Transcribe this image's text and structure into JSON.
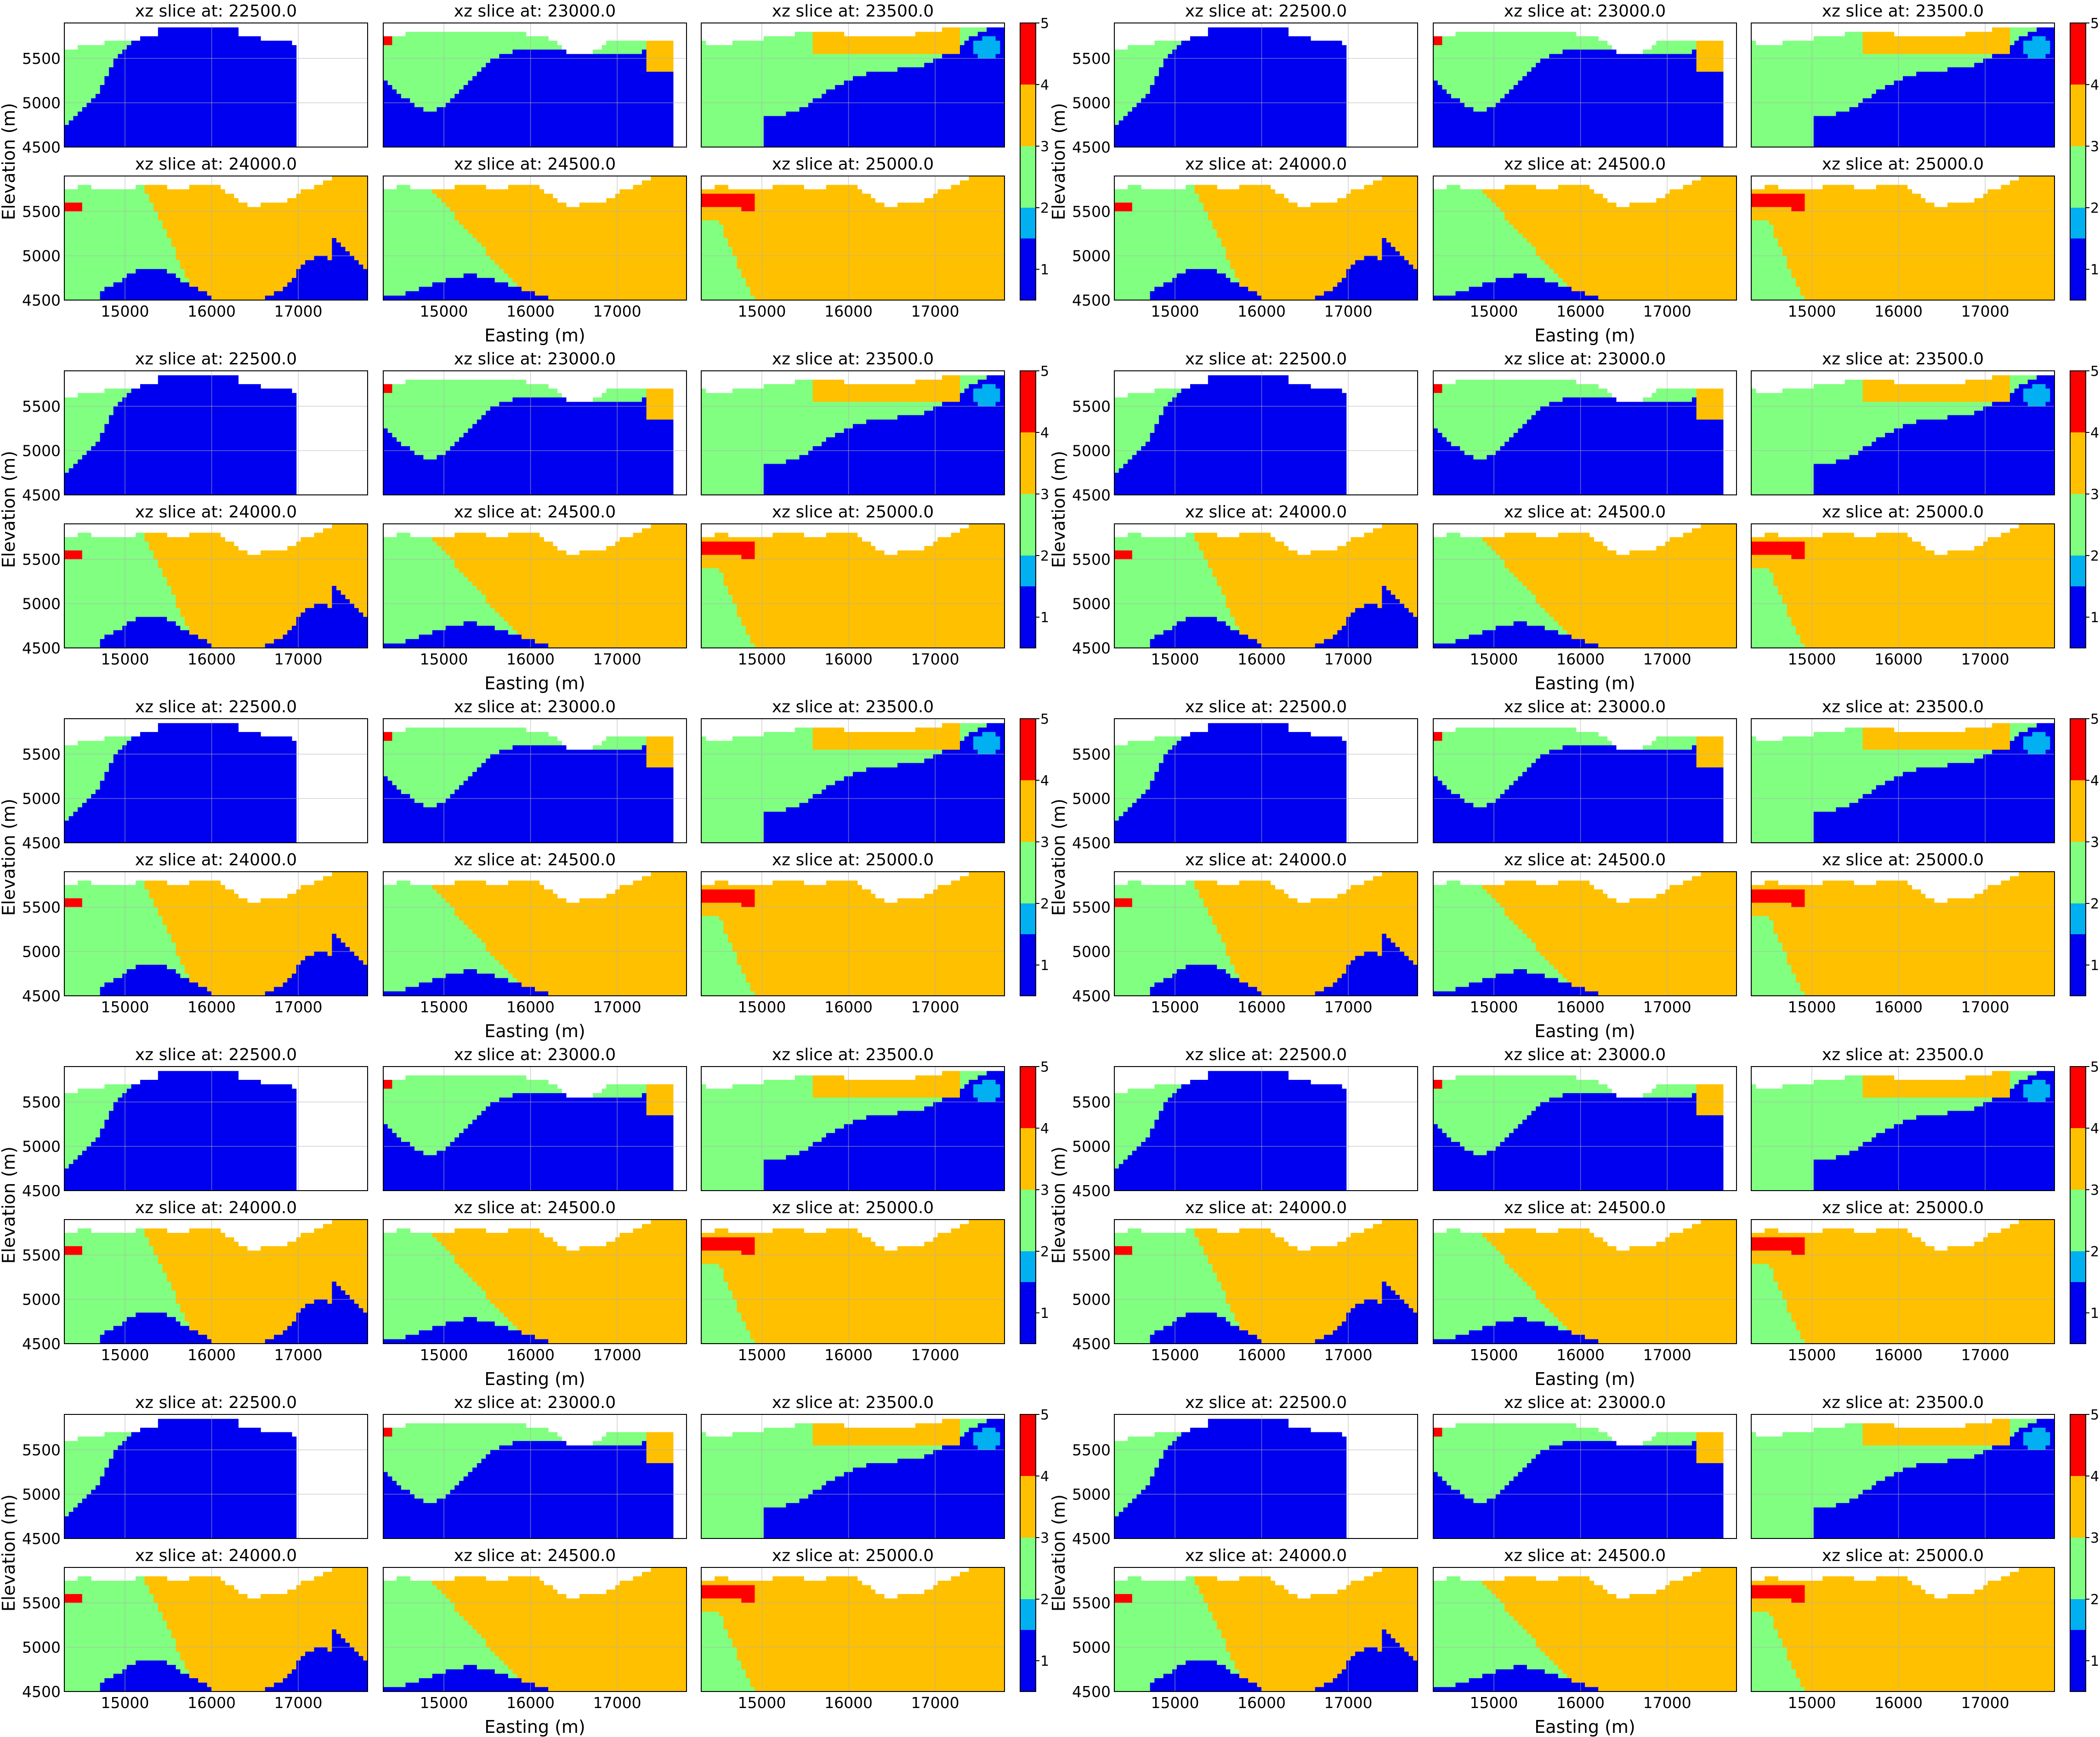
{
  "chart_data": {
    "type": "heatmap",
    "description_labels": {
      "panel_title_prefix": "xz slice at: ",
      "xlabel": "Easting (m)",
      "ylabel": "Elevation (m)"
    },
    "slices": [
      "22500.0",
      "23000.0",
      "23500.0",
      "24000.0",
      "24500.0",
      "25000.0"
    ],
    "xlim": [
      14300,
      17800
    ],
    "ylim": [
      4500,
      5900
    ],
    "xticks": [
      15000,
      16000,
      17000
    ],
    "yticks": [
      4500,
      5000,
      5500
    ],
    "colorbar": {
      "ticks": [
        1,
        2,
        3,
        4,
        5
      ],
      "range": [
        0.5,
        5.0
      ],
      "classes": [
        {
          "value": 1,
          "color": "#0000f0"
        },
        {
          "value": 2,
          "color": "#00b0f0"
        },
        {
          "value": 3,
          "color": "#80ff80"
        },
        {
          "value": 4,
          "color": "#ffc000"
        },
        {
          "value": 5,
          "color": "#ff0000"
        }
      ]
    },
    "grid": true,
    "layout": {
      "figure_rows": 5,
      "figure_cols": 2,
      "subplot_rows": 2,
      "subplot_cols": 3
    },
    "realizations": 10,
    "class_colors": {
      "1": "#0000f0",
      "2": "#00b0f0",
      "3": "#80ff80",
      "4": "#ffc000",
      "5": "#ff0000"
    }
  }
}
